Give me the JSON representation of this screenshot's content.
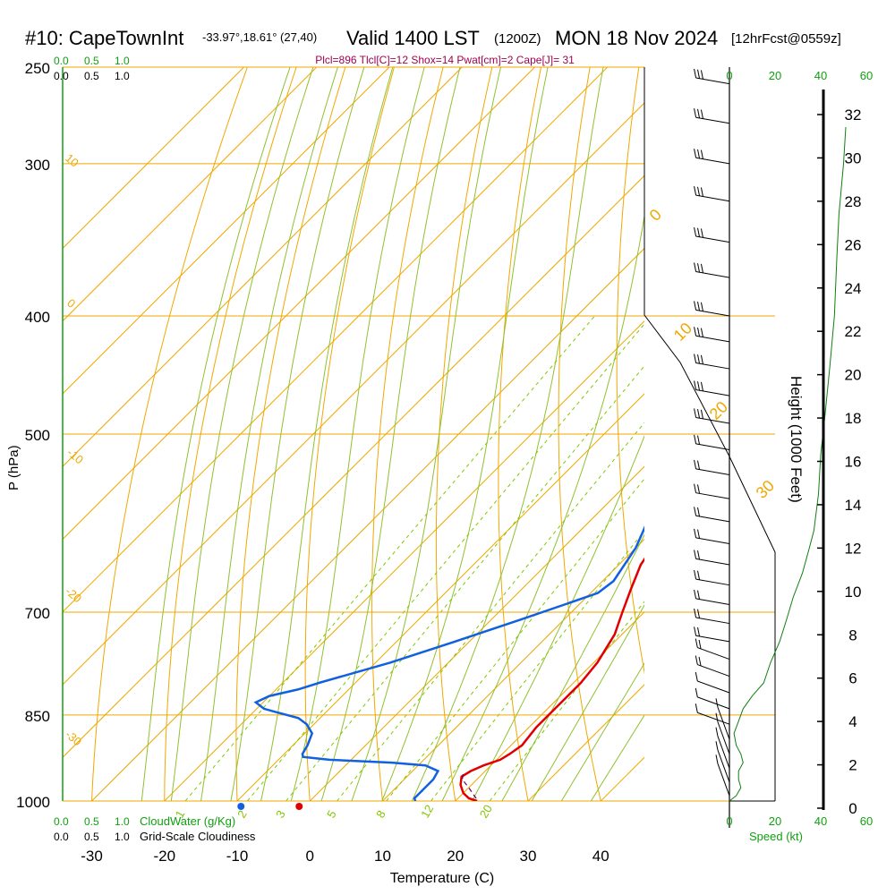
{
  "header": {
    "station": "#10: CapeTownInt",
    "coords": "-33.97°,18.61° (27,40)",
    "valid": "Valid 1400 LST",
    "utc": "(1200Z)",
    "date": "MON 18 Nov 2024",
    "forecast": "[12hrFcst@0559z]",
    "indices": "Plcl=896 Tlcl[C]=12 Shox=14 Pwat[cm]=2 Cape[J]= 31"
  },
  "colors": {
    "isotherm": "#f0a800",
    "dry_adiabat": "#80c800",
    "moist_adiabat": "#90c030",
    "mixing_ratio": "#80c800",
    "temperature": "#e00000",
    "dewpoint": "#1060e0",
    "green_label": "#10a010",
    "magenta": "#a00050",
    "wind_profile": "#108010"
  },
  "chart_data": {
    "type": "line",
    "title": "#10: CapeTownInt",
    "xlabel": "Temperature (C)",
    "ylabel": "P (hPa)",
    "right_axis_label": "Height (1000 Feet)",
    "xlim": [
      -34,
      46
    ],
    "ylim_hpa": [
      1000,
      250
    ],
    "log_pressure_axis": true,
    "pressure_ticks": [
      "250",
      "300",
      "400",
      "500",
      "700",
      "850",
      "1000"
    ],
    "pressure_values": [
      250,
      300,
      400,
      500,
      700,
      850,
      1000
    ],
    "temperature_ticks": [
      "-30",
      "-20",
      "-10",
      "0",
      "10",
      "20",
      "30",
      "40"
    ],
    "temperature_values": [
      -30,
      -20,
      -10,
      0,
      10,
      20,
      30,
      40
    ],
    "height_ticks": [
      "0",
      "2",
      "4",
      "6",
      "8",
      "10",
      "12",
      "14",
      "16",
      "18",
      "20",
      "22",
      "24",
      "26",
      "28",
      "30",
      "32"
    ],
    "height_values": [
      0,
      2,
      4,
      6,
      8,
      10,
      12,
      14,
      16,
      18,
      20,
      22,
      24,
      26,
      28,
      30,
      32
    ],
    "speed_ticks": [
      "0",
      "20",
      "40",
      "60"
    ],
    "speed_values": [
      0,
      20,
      40,
      60
    ],
    "speed_label": "(kt)",
    "speed_axis_label": "Speed (kt)",
    "cloud_ticks": [
      "0.0",
      "0.5",
      "1.0"
    ],
    "cloud_water_label": "CloudWater (g/Kg)",
    "cloudiness_label": "Grid-Scale Cloudiness",
    "isotherm_labels": [
      "-10",
      "0",
      "10",
      "20",
      "30"
    ],
    "dry_adiabat_labels": [
      "10",
      "0",
      "-10",
      "-20",
      "-30"
    ],
    "mixing_ratio_labels": [
      "1",
      "2",
      "3",
      "5",
      "8",
      "12",
      "20"
    ],
    "mixing_ratio_values": [
      1,
      2,
      3,
      5,
      8,
      12,
      20
    ],
    "series": [
      {
        "name": "Temperature",
        "points": [
          [
            23.0,
            1000
          ],
          [
            21.5,
            995
          ],
          [
            20,
            985
          ],
          [
            18.5,
            970
          ],
          [
            17.5,
            955
          ],
          [
            18,
            945
          ],
          [
            19,
            935
          ],
          [
            20.5,
            925
          ],
          [
            21,
            915
          ],
          [
            21.5,
            900
          ],
          [
            21,
            870
          ],
          [
            21,
            840
          ],
          [
            21,
            820
          ],
          [
            21,
            800
          ],
          [
            20.5,
            770
          ],
          [
            19,
            730
          ],
          [
            17,
            700
          ],
          [
            15,
            670
          ],
          [
            13,
            640
          ],
          [
            11.5,
            600
          ],
          [
            10.5,
            560
          ],
          [
            9.5,
            520
          ],
          [
            8.5,
            490
          ],
          [
            7,
            450
          ],
          [
            4,
            400
          ],
          [
            1.5,
            360
          ],
          [
            -0.5,
            320
          ],
          [
            -2.5,
            300
          ],
          [
            -5,
            280
          ],
          [
            -6,
            265
          ]
        ]
      },
      {
        "name": "Dewpoint",
        "points": [
          [
            14.5,
            1000
          ],
          [
            14,
            995
          ],
          [
            14,
            980
          ],
          [
            14,
            960
          ],
          [
            13.5,
            945
          ],
          [
            11,
            935
          ],
          [
            6,
            930
          ],
          [
            -3,
            925
          ],
          [
            -7,
            920
          ],
          [
            -7.5,
            915
          ],
          [
            -8,
            900
          ],
          [
            -9,
            880
          ],
          [
            -11,
            865
          ],
          [
            -13,
            855
          ],
          [
            -17,
            845
          ],
          [
            -19,
            840
          ],
          [
            -21,
            830
          ],
          [
            -20,
            820
          ],
          [
            -17,
            810
          ],
          [
            -15,
            800
          ],
          [
            -8,
            770
          ],
          [
            -2,
            740
          ],
          [
            4,
            710
          ],
          [
            8,
            690
          ],
          [
            11,
            675
          ],
          [
            11.5,
            660
          ],
          [
            10,
            620
          ],
          [
            8,
            590
          ],
          [
            5,
            560
          ],
          [
            1,
            530
          ],
          [
            -3,
            500
          ],
          [
            -7,
            480
          ],
          [
            -8,
            460
          ],
          [
            -8,
            440
          ],
          [
            -7,
            420
          ],
          [
            -6,
            400
          ],
          [
            -5,
            380
          ],
          [
            -5,
            360
          ],
          [
            -6,
            340
          ],
          [
            -7,
            320
          ],
          [
            -6.5,
            300
          ],
          [
            -6,
            280
          ],
          [
            -5,
            265
          ]
        ]
      },
      {
        "name": "Parcel",
        "points": [
          [
            22.5,
            995
          ],
          [
            20,
            975
          ],
          [
            18,
            960
          ],
          [
            17,
            945
          ]
        ]
      }
    ],
    "surface_markers": {
      "temperature": [
        24,
        1000
      ],
      "dewpoint": [
        16,
        1000
      ]
    },
    "wind_profile_kt": [
      [
        0,
        1000
      ],
      [
        3,
        990
      ],
      [
        5,
        975
      ],
      [
        4,
        960
      ],
      [
        4,
        945
      ],
      [
        6,
        930
      ],
      [
        5,
        915
      ],
      [
        3,
        900
      ],
      [
        2,
        880
      ],
      [
        4,
        860
      ],
      [
        6,
        840
      ],
      [
        10,
        820
      ],
      [
        15,
        800
      ],
      [
        18,
        770
      ],
      [
        22,
        740
      ],
      [
        25,
        710
      ],
      [
        28,
        680
      ],
      [
        32,
        650
      ],
      [
        35,
        620
      ],
      [
        37,
        600
      ],
      [
        39,
        560
      ],
      [
        40,
        520
      ],
      [
        42,
        480
      ],
      [
        44,
        440
      ],
      [
        46,
        400
      ],
      [
        47,
        360
      ],
      [
        48,
        330
      ],
      [
        50,
        300
      ],
      [
        51,
        280
      ]
    ],
    "wind_barb_pressures": [
      258,
      278,
      300,
      322,
      348,
      372,
      400,
      420,
      442,
      465,
      490,
      515,
      540,
      565,
      590,
      615,
      640,
      665,
      690,
      715,
      740,
      765,
      790,
      815,
      840,
      865,
      890,
      915,
      940,
      965,
      990
    ]
  }
}
